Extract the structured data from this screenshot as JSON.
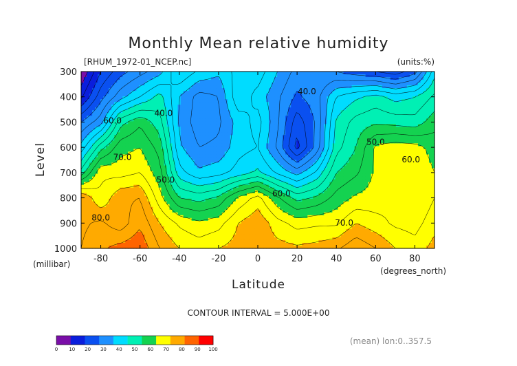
{
  "chart_data": {
    "type": "heatmap",
    "title": "Monthly Mean relative humidity",
    "subtitle_left": "[RHUM_1972-01_NCEP.nc]",
    "units_label": "(units:%)",
    "xlabel": "Latitude",
    "x_units": "(degrees_north)",
    "ylabel": "Level",
    "y_units": "(millibar)",
    "xlim": [
      -90,
      90
    ],
    "ylim": [
      1000,
      300
    ],
    "x_ticks": [
      -80,
      -60,
      -40,
      -20,
      0,
      20,
      40,
      60,
      80
    ],
    "y_ticks": [
      300,
      400,
      500,
      600,
      700,
      800,
      900,
      1000
    ],
    "contour_interval_text": "CONTOUR INTERVAL = 5.000E+00",
    "footer_right": "(mean) lon:0..357.5",
    "colorbar_ticks": [
      0,
      10,
      20,
      30,
      40,
      50,
      60,
      70,
      80,
      90,
      100
    ],
    "colorbar_colors": [
      "#7a0ea8",
      "#0a1edc",
      "#0a50f0",
      "#1e90ff",
      "#00dcff",
      "#00f0b4",
      "#14d250",
      "#ffff00",
      "#ffaa00",
      "#ff6400",
      "#ff0000"
    ],
    "contour_labels": [
      {
        "text": "40.0",
        "lat": 25,
        "lev": 390
      },
      {
        "text": "40.0",
        "lat": -48,
        "lev": 475
      },
      {
        "text": "50.0",
        "lat": 60,
        "lev": 590
      },
      {
        "text": "50.0",
        "lat": -47,
        "lev": 740
      },
      {
        "text": "60.0",
        "lat": -74,
        "lev": 505
      },
      {
        "text": "60.0",
        "lat": 12,
        "lev": 795
      },
      {
        "text": "60.0",
        "lat": 78,
        "lev": 660
      },
      {
        "text": "70.0",
        "lat": -69,
        "lev": 650
      },
      {
        "text": "70.0",
        "lat": 44,
        "lev": 910
      },
      {
        "text": "80.0",
        "lat": -80,
        "lev": 890
      }
    ],
    "latitudes": [
      -90,
      -80,
      -70,
      -60,
      -50,
      -40,
      -30,
      -20,
      -10,
      0,
      10,
      20,
      30,
      40,
      50,
      60,
      70,
      80,
      90
    ],
    "levels": [
      300,
      400,
      500,
      600,
      700,
      800,
      900,
      1000
    ],
    "values": [
      [
        5,
        20,
        28,
        33,
        38,
        50,
        44,
        41,
        47,
        48,
        40,
        33,
        30,
        30,
        27,
        25,
        22,
        28,
        48
      ],
      [
        14,
        28,
        38,
        45,
        52,
        40,
        33,
        35,
        49,
        43,
        36,
        29,
        33,
        45,
        49,
        52,
        48,
        50,
        56
      ],
      [
        30,
        38,
        58,
        64,
        57,
        39,
        32,
        34,
        42,
        47,
        36,
        22,
        31,
        51,
        57,
        59,
        58,
        57,
        63
      ],
      [
        42,
        58,
        68,
        70,
        63,
        41,
        35,
        36,
        43,
        45,
        34,
        18,
        32,
        53,
        60,
        71,
        73,
        72,
        68
      ],
      [
        57,
        74,
        73,
        75,
        67,
        47,
        41,
        43,
        47,
        51,
        44,
        38,
        46,
        60,
        64,
        71,
        73,
        74,
        70
      ],
      [
        85,
        76,
        84,
        85,
        72,
        60,
        58,
        61,
        71,
        77,
        66,
        58,
        61,
        67,
        71,
        72,
        74,
        70,
        75
      ],
      [
        84,
        86,
        82,
        89,
        80,
        74,
        71,
        73,
        80,
        84,
        77,
        73,
        74,
        74,
        80,
        77,
        74,
        73,
        78
      ],
      [
        85,
        89,
        92,
        94,
        85,
        80,
        78,
        80,
        82,
        83,
        82,
        81,
        82,
        84,
        89,
        85,
        80,
        77,
        82
      ]
    ]
  }
}
